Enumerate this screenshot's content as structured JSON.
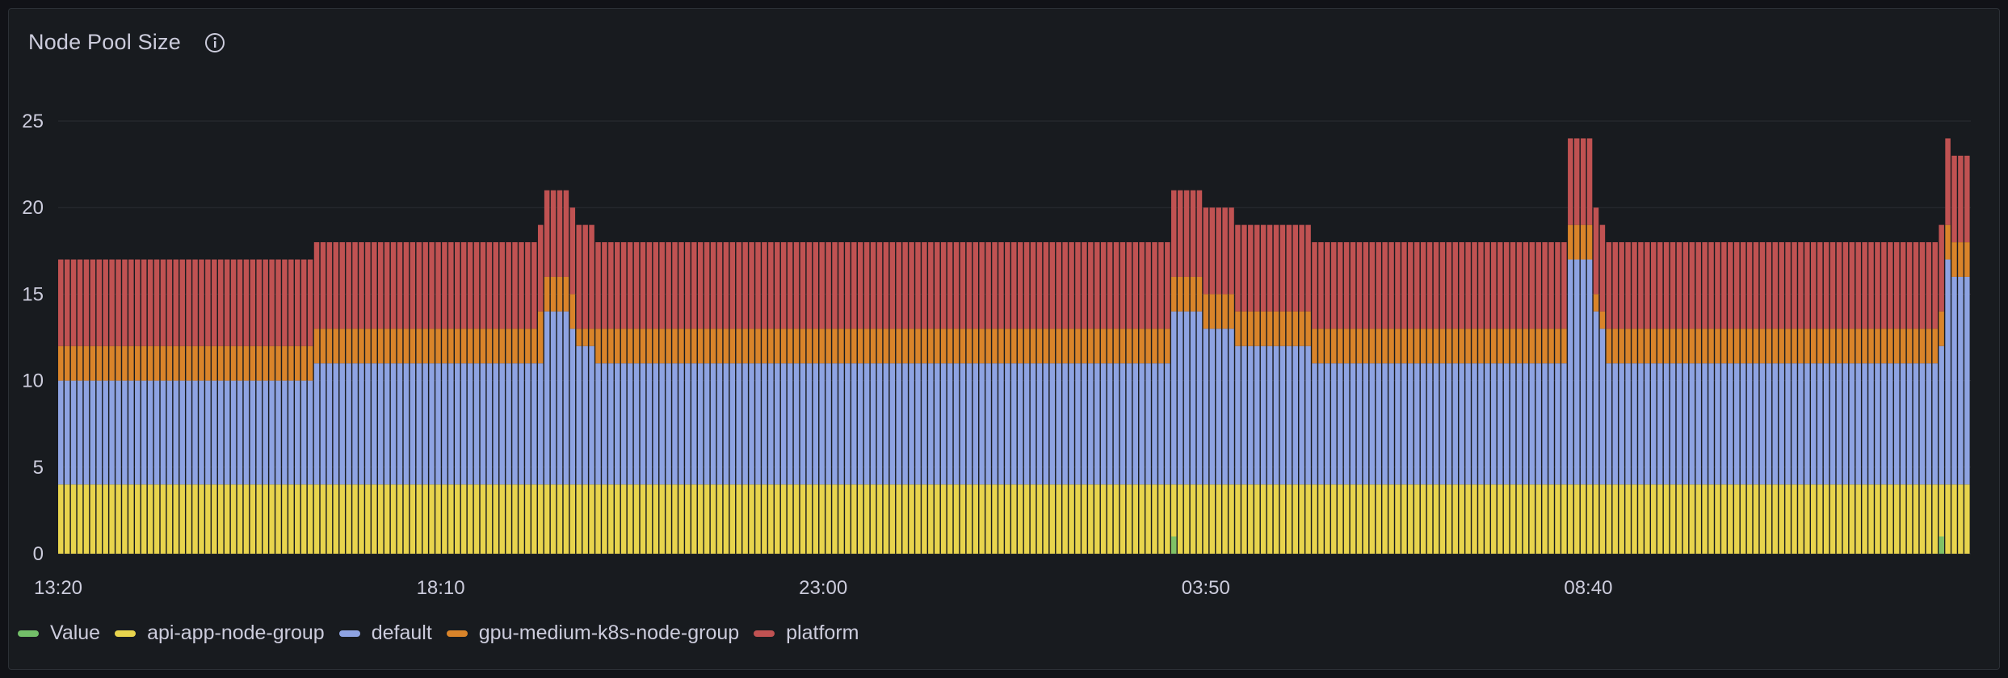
{
  "panel": {
    "title": "Node Pool Size",
    "info_icon": "info-circle-icon"
  },
  "colors": {
    "Value": "#73bf69",
    "api-app-node-group": "#e8d44d",
    "default": "#8ea3e2",
    "gpu-medium-k8s-node-group": "#d9842a",
    "platform": "#c05252"
  },
  "legend": [
    {
      "name": "Value",
      "color": "#73bf69"
    },
    {
      "name": "api-app-node-group",
      "color": "#e8d44d"
    },
    {
      "name": "default",
      "color": "#8ea3e2"
    },
    {
      "name": "gpu-medium-k8s-node-group",
      "color": "#d9842a"
    },
    {
      "name": "platform",
      "color": "#c05252"
    }
  ],
  "chart_data": {
    "type": "bar",
    "stacked": true,
    "ylim": [
      0,
      25
    ],
    "y_ticks": [
      0,
      5,
      10,
      15,
      20,
      25
    ],
    "x_ticks": [
      "13:20",
      "18:10",
      "23:00",
      "03:50",
      "08:40"
    ],
    "grid": true,
    "legend_position": "bottom-left",
    "segments": [
      {
        "count": 40,
        "Value": 0,
        "api": 4,
        "default": 6,
        "gpu": 2,
        "platform": 5
      },
      {
        "count": 35,
        "Value": 0,
        "api": 4,
        "default": 7,
        "gpu": 2,
        "platform": 5
      },
      {
        "count": 1,
        "Value": 0,
        "api": 4,
        "default": 7,
        "gpu": 3,
        "platform": 5
      },
      {
        "count": 4,
        "Value": 0,
        "api": 4,
        "default": 10,
        "gpu": 2,
        "platform": 5
      },
      {
        "count": 1,
        "Value": 0,
        "api": 4,
        "default": 9,
        "gpu": 2,
        "platform": 5
      },
      {
        "count": 3,
        "Value": 0,
        "api": 4,
        "default": 8,
        "gpu": 1,
        "platform": 6
      },
      {
        "count": 90,
        "Value": 0,
        "api": 4,
        "default": 7,
        "gpu": 2,
        "platform": 5
      },
      {
        "count": 1,
        "Value": 1,
        "api": 4,
        "default": 10,
        "gpu": 2,
        "platform": 5
      },
      {
        "count": 4,
        "Value": 0,
        "api": 4,
        "default": 10,
        "gpu": 2,
        "platform": 5
      },
      {
        "count": 5,
        "Value": 0,
        "api": 4,
        "default": 9,
        "gpu": 2,
        "platform": 5
      },
      {
        "count": 12,
        "Value": 0,
        "api": 4,
        "default": 8,
        "gpu": 2,
        "platform": 5
      },
      {
        "count": 40,
        "Value": 0,
        "api": 4,
        "default": 7,
        "gpu": 2,
        "platform": 5
      },
      {
        "count": 4,
        "Value": 0,
        "api": 4,
        "default": 13,
        "gpu": 2,
        "platform": 5
      },
      {
        "count": 1,
        "Value": 0,
        "api": 4,
        "default": 10,
        "gpu": 1,
        "platform": 5
      },
      {
        "count": 1,
        "Value": 0,
        "api": 4,
        "default": 9,
        "gpu": 1,
        "platform": 5
      },
      {
        "count": 52,
        "Value": 0,
        "api": 4,
        "default": 7,
        "gpu": 2,
        "platform": 5
      },
      {
        "count": 1,
        "Value": 1,
        "api": 4,
        "default": 8,
        "gpu": 2,
        "platform": 5
      },
      {
        "count": 1,
        "Value": 0,
        "api": 4,
        "default": 13,
        "gpu": 2,
        "platform": 5
      },
      {
        "count": 3,
        "Value": 0,
        "api": 4,
        "default": 12,
        "gpu": 2,
        "platform": 5
      }
    ]
  }
}
